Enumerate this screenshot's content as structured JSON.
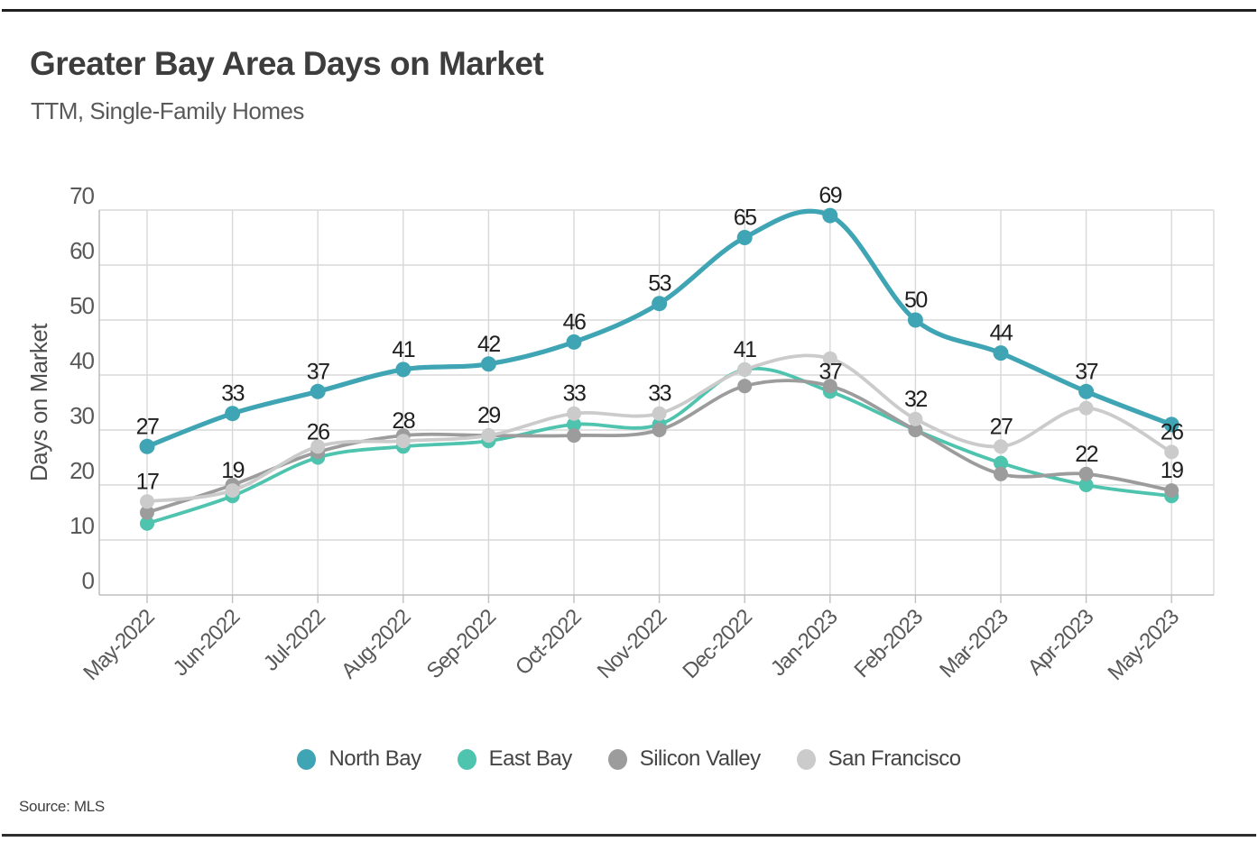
{
  "header": {
    "title": "Greater Bay Area Days on Market",
    "subtitle": "TTM, Single-Family Homes"
  },
  "chart_data": {
    "type": "line",
    "title": "Greater Bay Area Days on Market",
    "subtitle": "TTM, Single-Family Homes",
    "ylabel": "Days on Market",
    "xlabel": "",
    "ylim": [
      0,
      70
    ],
    "ytick_step": 10,
    "grid": true,
    "smoothed_lines": true,
    "legend_position": "bottom",
    "categories": [
      "May-2022",
      "Jun-2022",
      "Jul-2022",
      "Aug-2022",
      "Sep-2022",
      "Oct-2022",
      "Nov-2022",
      "Dec-2022",
      "Jan-2023",
      "Feb-2023",
      "Mar-2023",
      "Apr-2023",
      "May-2023"
    ],
    "series": [
      {
        "name": "North Bay",
        "color": "#3FA5B4",
        "line_width": 5.2,
        "marker_radius": 8.5,
        "values": [
          27,
          33,
          37,
          41,
          42,
          46,
          53,
          65,
          69,
          50,
          44,
          37,
          31
        ]
      },
      {
        "name": "East Bay",
        "color": "#4EC3AD",
        "line_width": 3.8,
        "marker_radius": 8,
        "values": [
          13,
          18,
          25,
          27,
          28,
          31,
          31,
          41,
          37,
          30,
          24,
          20,
          18
        ]
      },
      {
        "name": "Silicon Valley",
        "color": "#9C9C9C",
        "line_width": 3.8,
        "marker_radius": 8,
        "values": [
          15,
          20,
          26,
          29,
          29,
          29,
          30,
          38,
          38,
          30,
          22,
          22,
          19
        ]
      },
      {
        "name": "San Francisco",
        "color": "#CBCBCB",
        "line_width": 3.8,
        "marker_radius": 8,
        "values": [
          17,
          19,
          27,
          28,
          29,
          33,
          33,
          41,
          43,
          32,
          27,
          34,
          26
        ]
      }
    ],
    "point_labels": [
      {
        "series": "North Bay",
        "index": 0,
        "text": "27"
      },
      {
        "series": "North Bay",
        "index": 1,
        "text": "33"
      },
      {
        "series": "North Bay",
        "index": 2,
        "text": "37"
      },
      {
        "series": "North Bay",
        "index": 3,
        "text": "41"
      },
      {
        "series": "North Bay",
        "index": 4,
        "text": "42"
      },
      {
        "series": "North Bay",
        "index": 5,
        "text": "46"
      },
      {
        "series": "North Bay",
        "index": 6,
        "text": "53"
      },
      {
        "series": "North Bay",
        "index": 7,
        "text": "65"
      },
      {
        "series": "North Bay",
        "index": 8,
        "text": "69"
      },
      {
        "series": "North Bay",
        "index": 9,
        "text": "50"
      },
      {
        "series": "North Bay",
        "index": 10,
        "text": "44"
      },
      {
        "series": "North Bay",
        "index": 11,
        "text": "37"
      },
      {
        "series": "San Francisco",
        "index": 0,
        "text": "17"
      },
      {
        "series": "San Francisco",
        "index": 1,
        "text": "19"
      },
      {
        "series": "Silicon Valley",
        "index": 2,
        "text": "26"
      },
      {
        "series": "San Francisco",
        "index": 3,
        "text": "28"
      },
      {
        "series": "San Francisco",
        "index": 4,
        "text": "29"
      },
      {
        "series": "San Francisco",
        "index": 5,
        "text": "33"
      },
      {
        "series": "San Francisco",
        "index": 6,
        "text": "33"
      },
      {
        "series": "San Francisco",
        "index": 7,
        "text": "41"
      },
      {
        "series": "East Bay",
        "index": 8,
        "text": "37"
      },
      {
        "series": "San Francisco",
        "index": 9,
        "text": "32"
      },
      {
        "series": "San Francisco",
        "index": 10,
        "text": "27"
      },
      {
        "series": "Silicon Valley",
        "index": 11,
        "text": "22"
      },
      {
        "series": "San Francisco",
        "index": 12,
        "text": "26"
      },
      {
        "series": "Silicon Valley",
        "index": 12,
        "text": "19"
      }
    ],
    "colors": {
      "data_label": "#1f1f1f",
      "axis_text": "#595959",
      "gridline": "#d8d8d8",
      "axis_line": "#bfbfbf"
    }
  },
  "legend": {
    "items": [
      {
        "label": "North Bay",
        "color": "#3FA5B4"
      },
      {
        "label": "East Bay",
        "color": "#4EC3AD"
      },
      {
        "label": "Silicon Valley",
        "color": "#9C9C9C"
      },
      {
        "label": "San Francisco",
        "color": "#CBCBCB"
      }
    ]
  },
  "footer": {
    "source": "Source:  MLS"
  }
}
